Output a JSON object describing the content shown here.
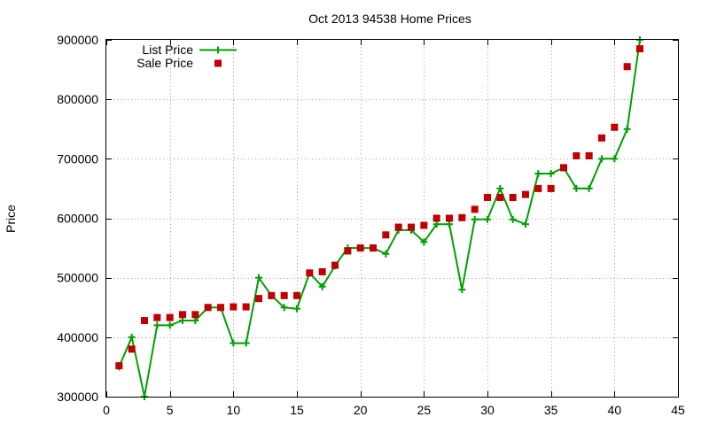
{
  "chart_data": {
    "type": "line",
    "title": "Oct 2013 94538 Home Prices",
    "xlabel": "",
    "ylabel": "Price",
    "xlim": [
      0,
      45
    ],
    "ylim": [
      300000,
      900000
    ],
    "x_ticks": [
      0,
      5,
      10,
      15,
      20,
      25,
      30,
      35,
      40,
      45
    ],
    "y_ticks": [
      300000,
      400000,
      500000,
      600000,
      700000,
      800000,
      900000
    ],
    "grid": true,
    "legend_position": "top-left",
    "series": [
      {
        "name": "List Price",
        "style": "line+cross",
        "color": "#00a000",
        "x": [
          1,
          2,
          3,
          4,
          5,
          6,
          7,
          8,
          9,
          10,
          11,
          12,
          13,
          14,
          15,
          16,
          17,
          18,
          19,
          20,
          21,
          22,
          23,
          24,
          25,
          26,
          27,
          28,
          29,
          30,
          31,
          32,
          33,
          34,
          35,
          36,
          37,
          38,
          39,
          40,
          41,
          42
        ],
        "y": [
          350000,
          400000,
          300000,
          420000,
          420000,
          428000,
          428000,
          450000,
          450000,
          390000,
          390000,
          500000,
          470000,
          450000,
          448000,
          508000,
          485000,
          520000,
          550000,
          550000,
          550000,
          540000,
          580000,
          580000,
          560000,
          590000,
          590000,
          480000,
          598000,
          598000,
          650000,
          598000,
          590000,
          675000,
          675000,
          685000,
          650000,
          650000,
          700000,
          700000,
          750000,
          900000
        ]
      },
      {
        "name": "Sale Price",
        "style": "square",
        "color": "#c00000",
        "x": [
          1,
          2,
          3,
          4,
          5,
          6,
          7,
          8,
          9,
          10,
          11,
          12,
          13,
          14,
          15,
          16,
          17,
          18,
          19,
          20,
          21,
          22,
          23,
          24,
          25,
          26,
          27,
          28,
          29,
          30,
          31,
          32,
          33,
          34,
          35,
          36,
          37,
          38,
          39,
          40,
          41,
          42
        ],
        "y": [
          352000,
          380000,
          428000,
          433000,
          433000,
          438000,
          438000,
          450000,
          450000,
          451000,
          451000,
          465000,
          470000,
          470000,
          470000,
          508000,
          510000,
          521000,
          545000,
          550000,
          550000,
          572000,
          585000,
          585000,
          588000,
          600000,
          600000,
          601000,
          615000,
          635000,
          635000,
          635000,
          640000,
          650000,
          650000,
          685000,
          705000,
          705000,
          735000,
          753000,
          855000,
          885000
        ]
      }
    ]
  }
}
